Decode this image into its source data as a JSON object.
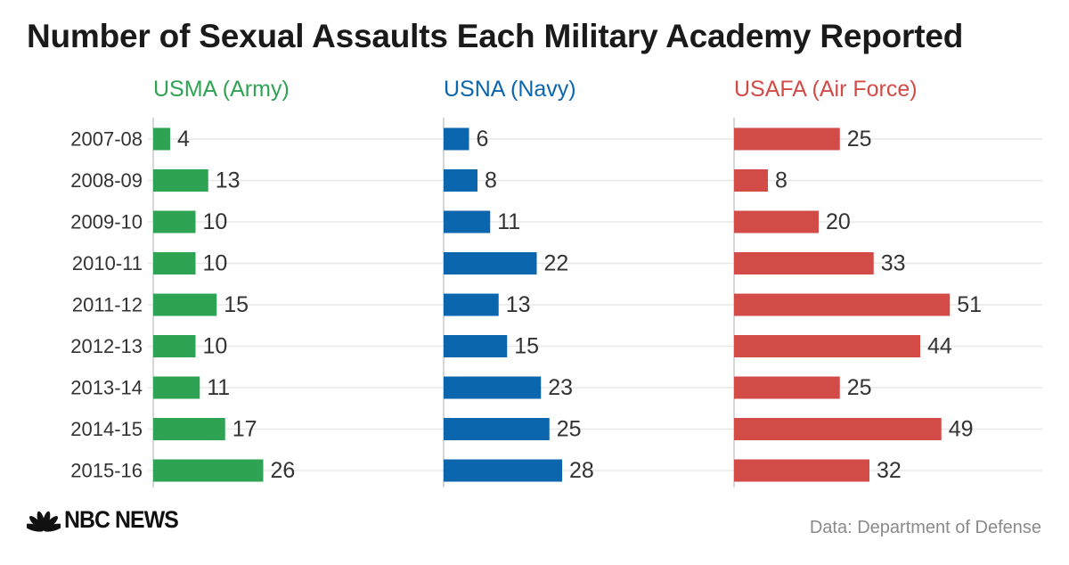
{
  "chart_data": {
    "type": "bar",
    "orientation": "horizontal",
    "title": "Number of Sexual Assaults Each Military Academy Reported",
    "categories": [
      "2007-08",
      "2008-09",
      "2009-10",
      "2010-11",
      "2011-12",
      "2012-13",
      "2013-14",
      "2014-15",
      "2015-16"
    ],
    "series": [
      {
        "name": "USMA (Army)",
        "color": "#2fa354",
        "values": [
          4,
          13,
          10,
          10,
          15,
          10,
          11,
          17,
          26
        ]
      },
      {
        "name": "USNA (Navy)",
        "color": "#0b66ad",
        "values": [
          6,
          8,
          11,
          22,
          13,
          15,
          23,
          25,
          28
        ]
      },
      {
        "name": "USAFA (Air Force)",
        "color": "#d24b47",
        "values": [
          25,
          8,
          20,
          33,
          51,
          44,
          25,
          49,
          32
        ]
      }
    ],
    "xlim": [
      0,
      51
    ],
    "xlabel": "",
    "ylabel": "",
    "grid": true,
    "legend": "panel titles"
  },
  "footer": {
    "brand": "NBC NEWS",
    "source": "Data: Department of Defense"
  },
  "icons": {
    "brand_logo": "peacock-icon"
  }
}
